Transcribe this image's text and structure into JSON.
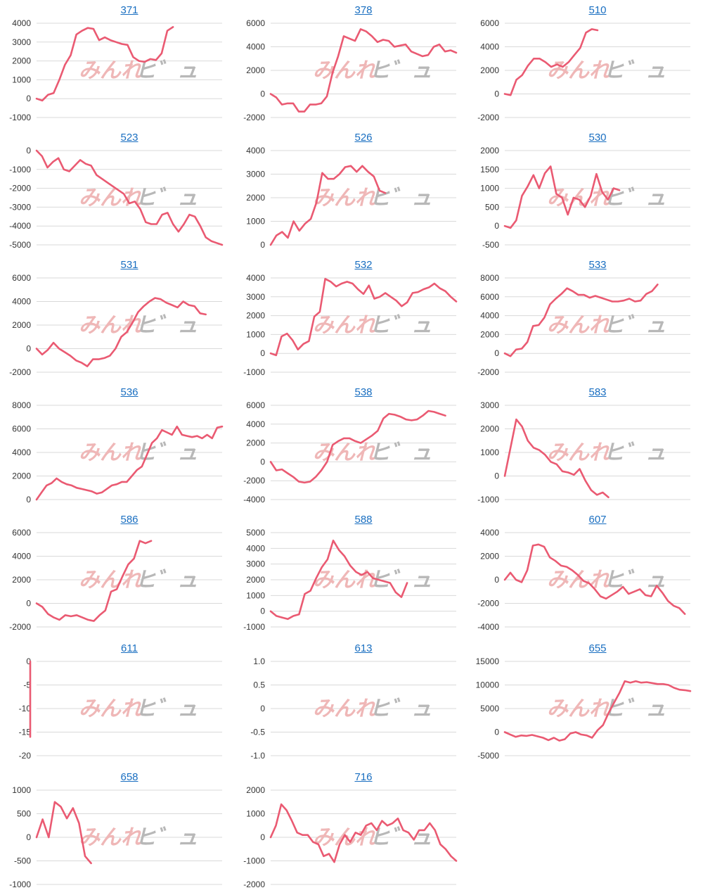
{
  "watermark": {
    "part_a": "みんれ",
    "part_b": "ヒ゛ュ"
  },
  "colors": {
    "line": "#ea5a72",
    "grid": "#d9d9d9",
    "link": "#1a6fc1"
  },
  "chart_data": [
    {
      "type": "line",
      "title": "371",
      "yticks": [
        4000,
        3000,
        2000,
        1000,
        0,
        -1000
      ],
      "values": [
        0,
        -100,
        200,
        300,
        1000,
        1800,
        2300,
        3400,
        3600,
        3750,
        3700,
        3100,
        3250,
        3100,
        3000,
        2900,
        2850,
        2200,
        2000,
        1950,
        2100,
        2050,
        2400,
        3600,
        3800
      ]
    },
    {
      "type": "line",
      "title": "378",
      "yticks": [
        6000,
        4000,
        2000,
        0,
        -2000
      ],
      "values": [
        0,
        -300,
        -900,
        -800,
        -800,
        -1500,
        -1500,
        -900,
        -900,
        -800,
        -200,
        1800,
        3200,
        4900,
        4700,
        4500,
        5500,
        5300,
        4900,
        4400,
        4600,
        4500,
        4000,
        4100,
        4200,
        3600,
        3400,
        3200,
        3300,
        4000,
        4200,
        3600,
        3700,
        3500
      ]
    },
    {
      "type": "line",
      "title": "510",
      "yticks": [
        6000,
        4000,
        2000,
        0,
        -2000
      ],
      "values": [
        0,
        -100,
        1200,
        1600,
        2400,
        3000,
        3000,
        2700,
        2300,
        2500,
        2300,
        2700,
        3300,
        3900,
        5200,
        5500,
        5400
      ]
    },
    {
      "type": "line",
      "title": "523",
      "yticks": [
        0,
        -1000,
        -2000,
        -3000,
        -4000,
        -5000
      ],
      "values": [
        0,
        -300,
        -900,
        -600,
        -400,
        -1000,
        -1100,
        -800,
        -500,
        -700,
        -800,
        -1300,
        -1500,
        -1700,
        -1900,
        -2100,
        -2300,
        -2800,
        -2700,
        -3100,
        -3800,
        -3900,
        -3900,
        -3400,
        -3300,
        -3900,
        -4300,
        -3900,
        -3400,
        -3500,
        -4000,
        -4600,
        -4800,
        -4900,
        -5000
      ]
    },
    {
      "type": "line",
      "title": "526",
      "yticks": [
        4000,
        3000,
        2000,
        1000,
        0
      ],
      "values": [
        0,
        400,
        550,
        300,
        1000,
        600,
        900,
        1100,
        1800,
        3050,
        2800,
        2800,
        3000,
        3300,
        3350,
        3100,
        3350,
        3100,
        2900,
        2300,
        2200
      ]
    },
    {
      "type": "line",
      "title": "530",
      "yticks": [
        2000,
        1500,
        1000,
        500,
        0,
        -500
      ],
      "values": [
        0,
        -50,
        150,
        800,
        1050,
        1350,
        1000,
        1400,
        1580,
        850,
        750,
        300,
        750,
        700,
        500,
        800,
        1380,
        900,
        700,
        1000,
        950
      ]
    },
    {
      "type": "line",
      "title": "531",
      "yticks": [
        6000,
        4000,
        2000,
        0,
        -2000
      ],
      "values": [
        0,
        -500,
        -100,
        500,
        0,
        -300,
        -600,
        -1000,
        -1200,
        -1500,
        -900,
        -900,
        -800,
        -600,
        0,
        1000,
        1400,
        2200,
        3100,
        3600,
        4000,
        4300,
        4200,
        3900,
        3700,
        3500,
        4000,
        3700,
        3600,
        3000,
        2900
      ]
    },
    {
      "type": "line",
      "title": "532",
      "yticks": [
        4000,
        3000,
        2000,
        1000,
        0,
        -1000
      ],
      "values": [
        0,
        -100,
        900,
        1050,
        700,
        200,
        500,
        650,
        1950,
        2200,
        3950,
        3800,
        3550,
        3700,
        3800,
        3700,
        3400,
        3150,
        3600,
        2900,
        3000,
        3200,
        3000,
        2800,
        2500,
        2700,
        3200,
        3250,
        3400,
        3500,
        3700,
        3450,
        3300,
        3000,
        2750
      ]
    },
    {
      "type": "line",
      "title": "533",
      "yticks": [
        8000,
        6000,
        4000,
        2000,
        0,
        -2000
      ],
      "values": [
        0,
        -300,
        400,
        500,
        1200,
        2900,
        3000,
        3800,
        5200,
        5800,
        6300,
        6900,
        6600,
        6200,
        6200,
        5900,
        6100,
        5900,
        5700,
        5500,
        5500,
        5600,
        5800,
        5500,
        5600,
        6300,
        6600,
        7300
      ]
    },
    {
      "type": "line",
      "title": "536",
      "yticks": [
        8000,
        6000,
        4000,
        2000,
        0
      ],
      "values": [
        0,
        600,
        1200,
        1400,
        1800,
        1500,
        1300,
        1200,
        1000,
        900,
        800,
        700,
        500,
        600,
        900,
        1200,
        1300,
        1500,
        1500,
        2000,
        2500,
        2800,
        3800,
        4800,
        5200,
        5900,
        5700,
        5500,
        6200,
        5500,
        5400,
        5300,
        5400,
        5200,
        5500,
        5200,
        6100,
        6200
      ]
    },
    {
      "type": "line",
      "title": "538",
      "yticks": [
        6000,
        4000,
        2000,
        0,
        -2000,
        -4000
      ],
      "values": [
        0,
        -900,
        -800,
        -1200,
        -1600,
        -2100,
        -2200,
        -2100,
        -1600,
        -900,
        0,
        1800,
        2200,
        2500,
        2500,
        2200,
        2000,
        2400,
        2800,
        3300,
        4600,
        5100,
        5000,
        4800,
        4500,
        4400,
        4500,
        4900,
        5400,
        5300,
        5100,
        4900
      ]
    },
    {
      "type": "line",
      "title": "583",
      "yticks": [
        3000,
        2000,
        1000,
        0,
        -1000
      ],
      "values": [
        0,
        1200,
        2400,
        2100,
        1500,
        1200,
        1100,
        900,
        600,
        500,
        200,
        150,
        50,
        300,
        -200,
        -600,
        -800,
        -700,
        -900
      ]
    },
    {
      "type": "line",
      "title": "586",
      "yticks": [
        6000,
        4000,
        2000,
        0,
        -2000
      ],
      "values": [
        0,
        -300,
        -900,
        -1200,
        -1400,
        -1000,
        -1100,
        -1000,
        -1200,
        -1400,
        -1500,
        -1000,
        -600,
        1000,
        1200,
        2300,
        3300,
        3800,
        5300,
        5100,
        5300
      ]
    },
    {
      "type": "line",
      "title": "588",
      "yticks": [
        5000,
        4000,
        3000,
        2000,
        1000,
        0,
        -1000
      ],
      "values": [
        0,
        -300,
        -400,
        -500,
        -300,
        -200,
        1100,
        1300,
        2100,
        2800,
        3300,
        4500,
        3900,
        3500,
        2900,
        2500,
        2300,
        2500,
        2100,
        2000,
        1900,
        1800,
        1200,
        900,
        1800
      ]
    },
    {
      "type": "line",
      "title": "607",
      "yticks": [
        4000,
        2000,
        0,
        -2000,
        -4000
      ],
      "values": [
        0,
        600,
        0,
        -200,
        800,
        2900,
        3000,
        2800,
        1900,
        1600,
        1200,
        1100,
        800,
        400,
        -100,
        -300,
        -800,
        -1400,
        -1600,
        -1300,
        -1000,
        -600,
        -1200,
        -1000,
        -800,
        -1300,
        -1400,
        -500,
        -1100,
        -1800,
        -2200,
        -2400,
        -2900
      ]
    },
    {
      "type": "line",
      "title": "611",
      "yticks": [
        0,
        -5,
        -10,
        -15,
        -20
      ],
      "values": [
        0,
        -16
      ]
    },
    {
      "type": "line",
      "title": "613",
      "yticks": [
        1.0,
        0.5,
        0,
        -0.5,
        -1.0
      ],
      "ytick_labels": [
        "1.0",
        "0.5",
        "0",
        "-0.5",
        "-1.0"
      ],
      "values": []
    },
    {
      "type": "line",
      "title": "655",
      "yticks": [
        15000,
        10000,
        5000,
        0,
        -5000
      ],
      "values": [
        0,
        -500,
        -1000,
        -700,
        -800,
        -600,
        -900,
        -1200,
        -1700,
        -1200,
        -1800,
        -1500,
        -300,
        0,
        -500,
        -700,
        -1200,
        400,
        1500,
        4000,
        6200,
        8300,
        10800,
        10500,
        10800,
        10500,
        10600,
        10400,
        10200,
        10200,
        10000,
        9400,
        9000,
        8900,
        8700
      ]
    },
    {
      "type": "line",
      "title": "658",
      "yticks": [
        1000,
        500,
        0,
        -500,
        -1000
      ],
      "values": [
        0,
        380,
        0,
        750,
        650,
        400,
        620,
        300,
        -400,
        -550
      ]
    },
    {
      "type": "line",
      "title": "716",
      "yticks": [
        2000,
        1000,
        0,
        -1000,
        -2000
      ],
      "values": [
        0,
        500,
        1400,
        1150,
        700,
        200,
        100,
        100,
        -200,
        -300,
        -800,
        -700,
        -1050,
        -300,
        100,
        -200,
        200,
        100,
        500,
        600,
        300,
        700,
        500,
        600,
        800,
        300,
        200,
        -100,
        300,
        300,
        600,
        300,
        -300,
        -500,
        -800,
        -1000
      ]
    }
  ]
}
